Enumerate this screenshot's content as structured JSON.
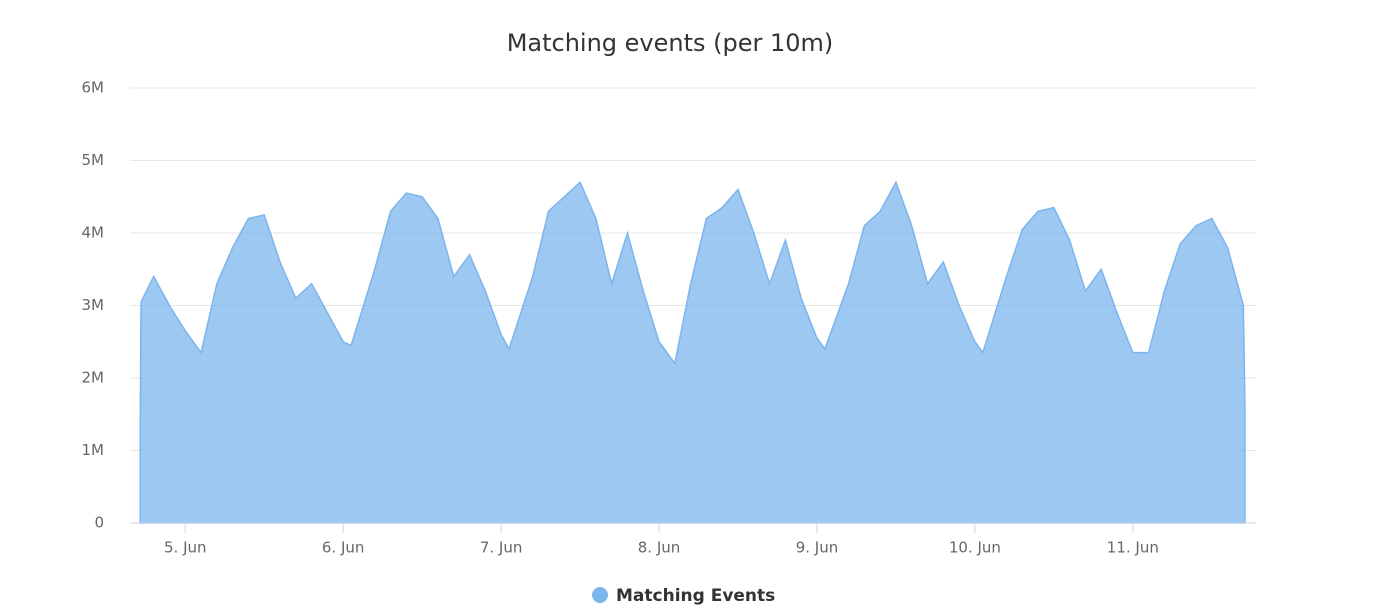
{
  "chart_data": {
    "type": "area",
    "title": "Matching events (per 10m)",
    "x": [
      4.715,
      4.72,
      4.8,
      4.9,
      5.0,
      5.1,
      5.2,
      5.3,
      5.4,
      5.5,
      5.6,
      5.7,
      5.8,
      5.9,
      6.0,
      6.05,
      6.2,
      6.3,
      6.4,
      6.5,
      6.6,
      6.7,
      6.8,
      6.9,
      7.0,
      7.05,
      7.2,
      7.3,
      7.4,
      7.5,
      7.6,
      7.7,
      7.8,
      7.9,
      8.0,
      8.1,
      8.2,
      8.3,
      8.4,
      8.5,
      8.6,
      8.7,
      8.8,
      8.9,
      9.0,
      9.05,
      9.2,
      9.3,
      9.4,
      9.5,
      9.6,
      9.7,
      9.8,
      9.9,
      10.0,
      10.05,
      10.2,
      10.3,
      10.4,
      10.5,
      10.6,
      10.7,
      10.8,
      10.9,
      11.0,
      11.1,
      11.2,
      11.3,
      11.4,
      11.5,
      11.6,
      11.7,
      11.71
    ],
    "series": [
      {
        "name": "Matching Events",
        "color": "#7cb5ec",
        "values": [
          1400000,
          3050000,
          3400000,
          3000000,
          2650000,
          2350000,
          3300000,
          3800000,
          4200000,
          4250000,
          3600000,
          3100000,
          3300000,
          2900000,
          2500000,
          2450000,
          3500000,
          4300000,
          4550000,
          4500000,
          4200000,
          3400000,
          3700000,
          3200000,
          2600000,
          2400000,
          3400000,
          4300000,
          4500000,
          4700000,
          4200000,
          3300000,
          4000000,
          3200000,
          2500000,
          2200000,
          3300000,
          4200000,
          4350000,
          4600000,
          4000000,
          3300000,
          3900000,
          3100000,
          2550000,
          2400000,
          3300000,
          4100000,
          4300000,
          4700000,
          4100000,
          3300000,
          3600000,
          3000000,
          2500000,
          2350000,
          3400000,
          4050000,
          4300000,
          4350000,
          3900000,
          3200000,
          3500000,
          2900000,
          2350000,
          2350000,
          3200000,
          3850000,
          4100000,
          4200000,
          3800000,
          3000000,
          1600000
        ]
      }
    ],
    "xlim": [
      4.65,
      11.78
    ],
    "xticks": [
      {
        "value": 5,
        "label": "5. Jun"
      },
      {
        "value": 6,
        "label": "6. Jun"
      },
      {
        "value": 7,
        "label": "7. Jun"
      },
      {
        "value": 8,
        "label": "8. Jun"
      },
      {
        "value": 9,
        "label": "9. Jun"
      },
      {
        "value": 10,
        "label": "10. Jun"
      },
      {
        "value": 11,
        "label": "11. Jun"
      }
    ],
    "ylim": [
      0,
      6000000
    ],
    "yticks": [
      0,
      {
        "value": 1000000,
        "label": "1M"
      },
      {
        "value": 2000000,
        "label": "2M"
      },
      {
        "value": 3000000,
        "label": "3M"
      },
      {
        "value": 4000000,
        "label": "4M"
      },
      {
        "value": 5000000,
        "label": "5M"
      },
      {
        "value": 6000000,
        "label": "6M"
      }
    ],
    "grid": true
  }
}
